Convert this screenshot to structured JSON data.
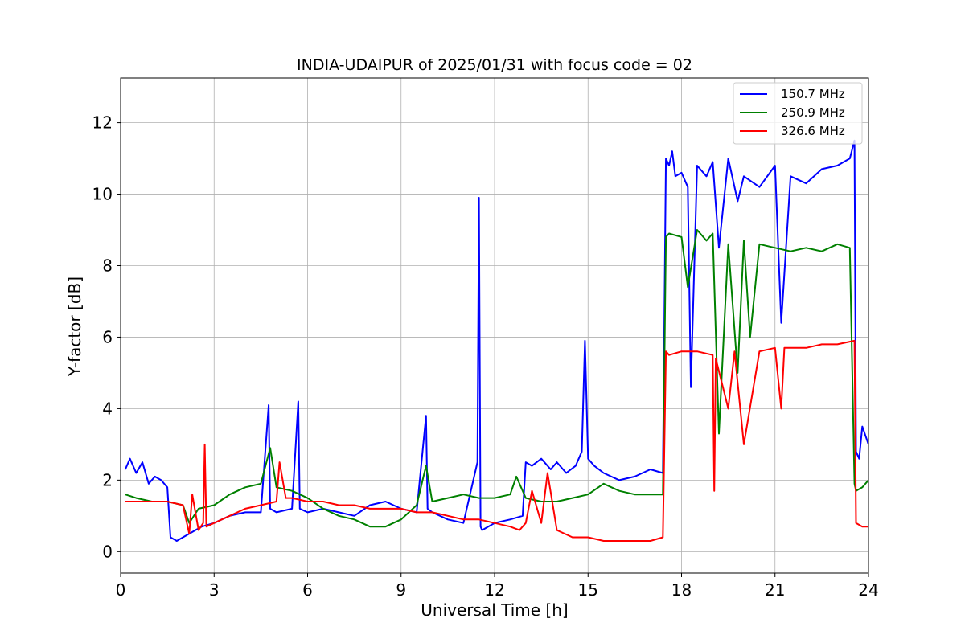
{
  "chart_data": {
    "type": "line",
    "title": "INDIA-UDAIPUR of 2025/01/31 with focus code = 02",
    "xlabel": "Universal Time [h]",
    "ylabel": "Y-factor [dB]",
    "xlim": [
      0,
      24
    ],
    "ylim": [
      -0.6,
      13.25
    ],
    "xticks": [
      0,
      3,
      6,
      9,
      12,
      15,
      18,
      21,
      24
    ],
    "yticks": [
      0,
      2,
      4,
      6,
      8,
      10,
      12
    ],
    "grid": true,
    "legend_position": "top-right",
    "series": [
      {
        "name": "150.7 MHz",
        "color": "#0000ff",
        "x": [
          0.15,
          0.3,
          0.5,
          0.7,
          0.9,
          1.1,
          1.3,
          1.5,
          1.6,
          1.8,
          2.0,
          2.2,
          2.4,
          2.6,
          3.0,
          3.5,
          4.0,
          4.5,
          4.75,
          4.8,
          5.0,
          5.5,
          5.7,
          5.75,
          6.0,
          6.5,
          7.0,
          7.5,
          8.0,
          8.5,
          9.0,
          9.5,
          9.8,
          9.85,
          10.0,
          10.5,
          11.0,
          11.45,
          11.5,
          11.55,
          11.6,
          12.0,
          12.5,
          12.9,
          13.0,
          13.2,
          13.5,
          13.8,
          14.0,
          14.3,
          14.6,
          14.8,
          14.9,
          15.0,
          15.2,
          15.5,
          16.0,
          16.5,
          17.0,
          17.4,
          17.5,
          17.6,
          17.7,
          17.8,
          18.0,
          18.2,
          18.3,
          18.5,
          18.8,
          19.0,
          19.2,
          19.5,
          19.8,
          20.0,
          20.5,
          21.0,
          21.2,
          21.5,
          22.0,
          22.5,
          23.0,
          23.4,
          23.55,
          23.6,
          23.7,
          23.8,
          24.0
        ],
        "y": [
          2.3,
          2.6,
          2.2,
          2.5,
          1.9,
          2.1,
          2.0,
          1.8,
          0.4,
          0.3,
          0.4,
          0.5,
          0.6,
          0.7,
          0.8,
          1.0,
          1.1,
          1.1,
          4.1,
          1.2,
          1.1,
          1.2,
          4.2,
          1.2,
          1.1,
          1.2,
          1.1,
          1.0,
          1.3,
          1.4,
          1.2,
          1.1,
          3.8,
          1.2,
          1.1,
          0.9,
          0.8,
          2.5,
          9.9,
          0.7,
          0.6,
          0.8,
          0.9,
          1.0,
          2.5,
          2.4,
          2.6,
          2.3,
          2.5,
          2.2,
          2.4,
          2.8,
          5.9,
          2.6,
          2.4,
          2.2,
          2.0,
          2.1,
          2.3,
          2.2,
          11.0,
          10.8,
          11.2,
          10.5,
          10.6,
          10.2,
          4.6,
          10.8,
          10.5,
          10.9,
          8.5,
          11.0,
          9.8,
          10.5,
          10.2,
          10.8,
          6.4,
          10.5,
          10.3,
          10.7,
          10.8,
          11.0,
          11.5,
          2.8,
          2.6,
          3.5,
          3.0
        ]
      },
      {
        "name": "250.9 MHz",
        "color": "#008000",
        "x": [
          0.15,
          0.5,
          1.0,
          1.5,
          2.0,
          2.2,
          2.5,
          3.0,
          3.5,
          4.0,
          4.5,
          4.8,
          5.0,
          5.5,
          6.0,
          6.5,
          7.0,
          7.5,
          8.0,
          8.5,
          9.0,
          9.5,
          9.8,
          10.0,
          10.5,
          11.0,
          11.5,
          12.0,
          12.5,
          12.7,
          13.0,
          13.5,
          14.0,
          14.5,
          15.0,
          15.5,
          16.0,
          16.5,
          17.0,
          17.4,
          17.5,
          17.6,
          18.0,
          18.2,
          18.5,
          18.8,
          19.0,
          19.2,
          19.5,
          19.8,
          20.0,
          20.2,
          20.5,
          21.0,
          21.5,
          22.0,
          22.5,
          23.0,
          23.4,
          23.55,
          23.6,
          23.8,
          24.0
        ],
        "y": [
          1.6,
          1.5,
          1.4,
          1.4,
          1.3,
          0.8,
          1.2,
          1.3,
          1.6,
          1.8,
          1.9,
          2.9,
          1.8,
          1.7,
          1.5,
          1.2,
          1.0,
          0.9,
          0.7,
          0.7,
          0.9,
          1.3,
          2.4,
          1.4,
          1.5,
          1.6,
          1.5,
          1.5,
          1.6,
          2.1,
          1.5,
          1.4,
          1.4,
          1.5,
          1.6,
          1.9,
          1.7,
          1.6,
          1.6,
          1.6,
          8.8,
          8.9,
          8.8,
          7.4,
          9.0,
          8.7,
          8.9,
          3.3,
          8.6,
          5.0,
          8.7,
          6.0,
          8.6,
          8.5,
          8.4,
          8.5,
          8.4,
          8.6,
          8.5,
          1.9,
          1.7,
          1.8,
          2.0
        ]
      },
      {
        "name": "326.6 MHz",
        "color": "#ff0000",
        "x": [
          0.15,
          0.5,
          1.0,
          1.5,
          2.0,
          2.2,
          2.3,
          2.5,
          2.65,
          2.7,
          2.75,
          3.0,
          3.5,
          4.0,
          4.5,
          5.0,
          5.1,
          5.3,
          5.5,
          6.0,
          6.5,
          7.0,
          7.5,
          8.0,
          8.5,
          9.0,
          9.5,
          10.0,
          10.5,
          11.0,
          11.5,
          12.0,
          12.5,
          12.8,
          13.0,
          13.2,
          13.5,
          13.7,
          14.0,
          14.5,
          15.0,
          15.5,
          16.0,
          16.5,
          17.0,
          17.4,
          17.5,
          17.6,
          18.0,
          18.5,
          19.0,
          19.05,
          19.1,
          19.5,
          19.7,
          20.0,
          20.5,
          21.0,
          21.2,
          21.3,
          21.5,
          22.0,
          22.5,
          23.0,
          23.55,
          23.6,
          23.8,
          24.0
        ],
        "y": [
          1.4,
          1.4,
          1.4,
          1.4,
          1.3,
          0.5,
          1.6,
          0.6,
          0.8,
          3.0,
          0.7,
          0.8,
          1.0,
          1.2,
          1.3,
          1.4,
          2.5,
          1.5,
          1.5,
          1.4,
          1.4,
          1.3,
          1.3,
          1.2,
          1.2,
          1.2,
          1.1,
          1.1,
          1.0,
          0.9,
          0.9,
          0.8,
          0.7,
          0.6,
          0.8,
          1.7,
          0.8,
          2.2,
          0.6,
          0.4,
          0.4,
          0.3,
          0.3,
          0.3,
          0.3,
          0.4,
          5.6,
          5.5,
          5.6,
          5.6,
          5.5,
          1.7,
          5.4,
          4.0,
          5.6,
          3.0,
          5.6,
          5.7,
          4.0,
          5.7,
          5.7,
          5.7,
          5.8,
          5.8,
          5.9,
          0.8,
          0.7,
          0.7
        ]
      }
    ]
  }
}
